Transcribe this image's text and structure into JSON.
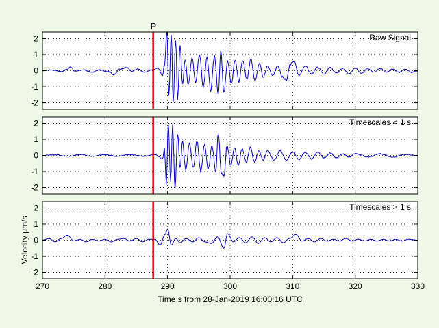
{
  "chart_data": [
    {
      "type": "line",
      "annotation": "Raw Signal",
      "xlim": [
        270,
        330
      ],
      "ylim": [
        -2.4,
        2.4
      ],
      "yticks": [
        -2,
        -1,
        0,
        1,
        2
      ],
      "grid": true,
      "line_color": "#0000cc",
      "pick": {
        "label": "P",
        "x": 287.7,
        "color": "#dd0000"
      },
      "segments": [
        [
          270,
          0.0
        ],
        [
          271.5,
          0.05
        ],
        [
          273,
          -0.05
        ],
        [
          274,
          0.1
        ],
        [
          274.5,
          0.25
        ],
        [
          275.2,
          -0.05
        ],
        [
          276.5,
          0.05
        ],
        [
          278,
          -0.1
        ],
        [
          279,
          0.05
        ],
        [
          280.5,
          -0.05
        ],
        [
          281.5,
          -0.25
        ],
        [
          282.3,
          0.1
        ],
        [
          283.5,
          0.2
        ],
        [
          284.3,
          -0.05
        ],
        [
          285.2,
          0.1
        ],
        [
          286.3,
          -0.1
        ],
        [
          287.5,
          0.05
        ],
        [
          288.5,
          0.15
        ],
        [
          289.2,
          -0.3
        ],
        [
          289.5,
          0.4
        ],
        [
          289.9,
          2.4
        ],
        [
          290.2,
          -1.5
        ],
        [
          290.6,
          2.3
        ],
        [
          290.9,
          -2.0
        ],
        [
          291.3,
          2.0
        ],
        [
          291.6,
          -1.8
        ],
        [
          292.0,
          1.5
        ],
        [
          292.4,
          -0.8
        ],
        [
          292.8,
          0.7
        ],
        [
          293.3,
          -0.9
        ],
        [
          293.9,
          0.8
        ],
        [
          294.5,
          -0.7
        ],
        [
          295.1,
          1.0
        ],
        [
          295.7,
          -1.0
        ],
        [
          296.3,
          0.8
        ],
        [
          296.9,
          -1.2
        ],
        [
          297.5,
          0.9
        ],
        [
          298.1,
          -1.4
        ],
        [
          298.5,
          1.2
        ],
        [
          299.0,
          -1.3
        ],
        [
          299.6,
          0.6
        ],
        [
          300.2,
          -0.8
        ],
        [
          300.8,
          0.7
        ],
        [
          301.4,
          -0.7
        ],
        [
          302.0,
          0.6
        ],
        [
          302.7,
          -0.5
        ],
        [
          303.3,
          0.7
        ],
        [
          304.0,
          -0.6
        ],
        [
          304.7,
          0.5
        ],
        [
          305.3,
          -0.4
        ],
        [
          306.0,
          0.3
        ],
        [
          306.8,
          -0.3
        ],
        [
          307.6,
          0.3
        ],
        [
          308.4,
          -0.4
        ],
        [
          309.0,
          -0.6
        ],
        [
          309.6,
          0.4
        ],
        [
          310.2,
          0.6
        ],
        [
          311.0,
          -0.3
        ],
        [
          312.0,
          0.3
        ],
        [
          313.0,
          -0.2
        ],
        [
          314.0,
          0.2
        ],
        [
          315.0,
          -0.2
        ],
        [
          316.0,
          0.2
        ],
        [
          317.0,
          -0.15
        ],
        [
          318.0,
          0.15
        ],
        [
          319.0,
          -0.2
        ],
        [
          320.0,
          0.15
        ],
        [
          321.0,
          -0.15
        ],
        [
          322.0,
          0.15
        ],
        [
          323.0,
          -0.1
        ],
        [
          324.0,
          0.15
        ],
        [
          325.0,
          -0.1
        ],
        [
          326.0,
          0.1
        ],
        [
          327.0,
          -0.1
        ],
        [
          328.0,
          0.1
        ],
        [
          329.0,
          -0.1
        ],
        [
          330.0,
          0.0
        ]
      ]
    },
    {
      "type": "line",
      "annotation": "Timescales < 1 s",
      "xlim": [
        270,
        330
      ],
      "ylim": [
        -2.4,
        2.4
      ],
      "yticks": [
        -2,
        -1,
        0,
        1,
        2
      ],
      "grid": true,
      "line_color": "#0000cc",
      "pick": {
        "label": "",
        "x": 287.7,
        "color": "#dd0000"
      },
      "segments": [
        [
          270,
          0.0
        ],
        [
          272,
          0.05
        ],
        [
          274,
          -0.05
        ],
        [
          276,
          0.05
        ],
        [
          278,
          -0.05
        ],
        [
          280,
          0.05
        ],
        [
          282,
          -0.05
        ],
        [
          284,
          0.05
        ],
        [
          286,
          -0.05
        ],
        [
          288,
          0.05
        ],
        [
          289.2,
          -0.2
        ],
        [
          289.5,
          0.4
        ],
        [
          289.8,
          -1.7
        ],
        [
          290.1,
          1.9
        ],
        [
          290.5,
          -1.6
        ],
        [
          290.8,
          1.9
        ],
        [
          291.2,
          -2.0
        ],
        [
          291.6,
          1.4
        ],
        [
          292.0,
          -0.8
        ],
        [
          292.4,
          0.9
        ],
        [
          292.9,
          -0.9
        ],
        [
          293.5,
          0.8
        ],
        [
          294.1,
          -0.8
        ],
        [
          294.7,
          0.9
        ],
        [
          295.3,
          -1.0
        ],
        [
          295.9,
          0.7
        ],
        [
          296.5,
          -0.9
        ],
        [
          297.1,
          0.6
        ],
        [
          297.7,
          -1.0
        ],
        [
          298.1,
          1.4
        ],
        [
          298.6,
          -1.1
        ],
        [
          299.0,
          -1.3
        ],
        [
          299.5,
          0.6
        ],
        [
          300.1,
          -0.6
        ],
        [
          300.7,
          0.5
        ],
        [
          301.3,
          -0.6
        ],
        [
          301.9,
          0.4
        ],
        [
          302.6,
          -0.4
        ],
        [
          303.2,
          0.5
        ],
        [
          303.9,
          -0.4
        ],
        [
          304.6,
          0.3
        ],
        [
          305.3,
          -0.3
        ],
        [
          306.0,
          0.3
        ],
        [
          307.0,
          -0.3
        ],
        [
          308.0,
          0.3
        ],
        [
          309.0,
          -0.3
        ],
        [
          310.0,
          0.25
        ],
        [
          311.0,
          -0.25
        ],
        [
          312.0,
          0.2
        ],
        [
          313.0,
          -0.2
        ],
        [
          314.0,
          0.2
        ],
        [
          315.0,
          -0.15
        ],
        [
          316.0,
          0.15
        ],
        [
          317.0,
          -0.15
        ],
        [
          318.0,
          0.1
        ],
        [
          319.0,
          -0.1
        ],
        [
          320.0,
          0.1
        ],
        [
          322.0,
          -0.1
        ],
        [
          324.0,
          0.1
        ],
        [
          326.0,
          -0.1
        ],
        [
          328.0,
          0.05
        ],
        [
          330.0,
          0.0
        ]
      ]
    },
    {
      "type": "line",
      "annotation": "Timescales > 1 s",
      "ylabel": "Velocity μm/s",
      "xlabel": "Time s from 28-Jan-2019 16:00:16 UTC",
      "xlim": [
        270,
        330
      ],
      "ylim": [
        -2.4,
        2.4
      ],
      "xticks": [
        270,
        280,
        290,
        300,
        310,
        320,
        330
      ],
      "yticks": [
        -2,
        -1,
        0,
        1,
        2
      ],
      "grid": true,
      "line_color": "#0000cc",
      "pick": {
        "label": "",
        "x": 287.7,
        "color": "#dd0000"
      },
      "segments": [
        [
          270,
          0.0
        ],
        [
          271,
          0.1
        ],
        [
          272,
          -0.1
        ],
        [
          273,
          0.1
        ],
        [
          274,
          0.3
        ],
        [
          275,
          -0.05
        ],
        [
          276,
          0.05
        ],
        [
          277,
          -0.1
        ],
        [
          278,
          0.05
        ],
        [
          279,
          -0.05
        ],
        [
          280,
          0.05
        ],
        [
          281,
          -0.1
        ],
        [
          282,
          0.05
        ],
        [
          283,
          0.1
        ],
        [
          284,
          -0.05
        ],
        [
          285,
          0.1
        ],
        [
          286,
          -0.1
        ],
        [
          287,
          0.05
        ],
        [
          288,
          0.05
        ],
        [
          288.8,
          -0.3
        ],
        [
          289.6,
          0.35
        ],
        [
          290.0,
          0.7
        ],
        [
          290.6,
          -0.3
        ],
        [
          291.3,
          0.1
        ],
        [
          292,
          -0.15
        ],
        [
          293,
          0.1
        ],
        [
          294,
          -0.1
        ],
        [
          295,
          0.15
        ],
        [
          296,
          -0.1
        ],
        [
          297,
          -0.2
        ],
        [
          298,
          0.2
        ],
        [
          299,
          -0.5
        ],
        [
          299.6,
          0.4
        ],
        [
          300.5,
          -0.1
        ],
        [
          301.5,
          0.15
        ],
        [
          302.5,
          -0.15
        ],
        [
          303.5,
          0.2
        ],
        [
          304.5,
          -0.2
        ],
        [
          305.5,
          0.15
        ],
        [
          306.5,
          -0.1
        ],
        [
          307.5,
          0.15
        ],
        [
          308.5,
          -0.15
        ],
        [
          309.5,
          0.1
        ],
        [
          310.5,
          0.35
        ],
        [
          311.5,
          -0.05
        ],
        [
          312.5,
          0.1
        ],
        [
          313.5,
          -0.1
        ],
        [
          314.5,
          0.1
        ],
        [
          315.5,
          -0.05
        ],
        [
          316.5,
          0.05
        ],
        [
          317.5,
          -0.05
        ],
        [
          318.5,
          0.1
        ],
        [
          319.5,
          -0.05
        ],
        [
          320.5,
          0.05
        ],
        [
          321.5,
          -0.05
        ],
        [
          322.5,
          0.05
        ],
        [
          323.5,
          -0.05
        ],
        [
          324.5,
          0.05
        ],
        [
          325.5,
          -0.05
        ],
        [
          326.5,
          0.05
        ],
        [
          327.5,
          -0.05
        ],
        [
          328.5,
          0.05
        ],
        [
          330,
          0.0
        ]
      ]
    }
  ]
}
